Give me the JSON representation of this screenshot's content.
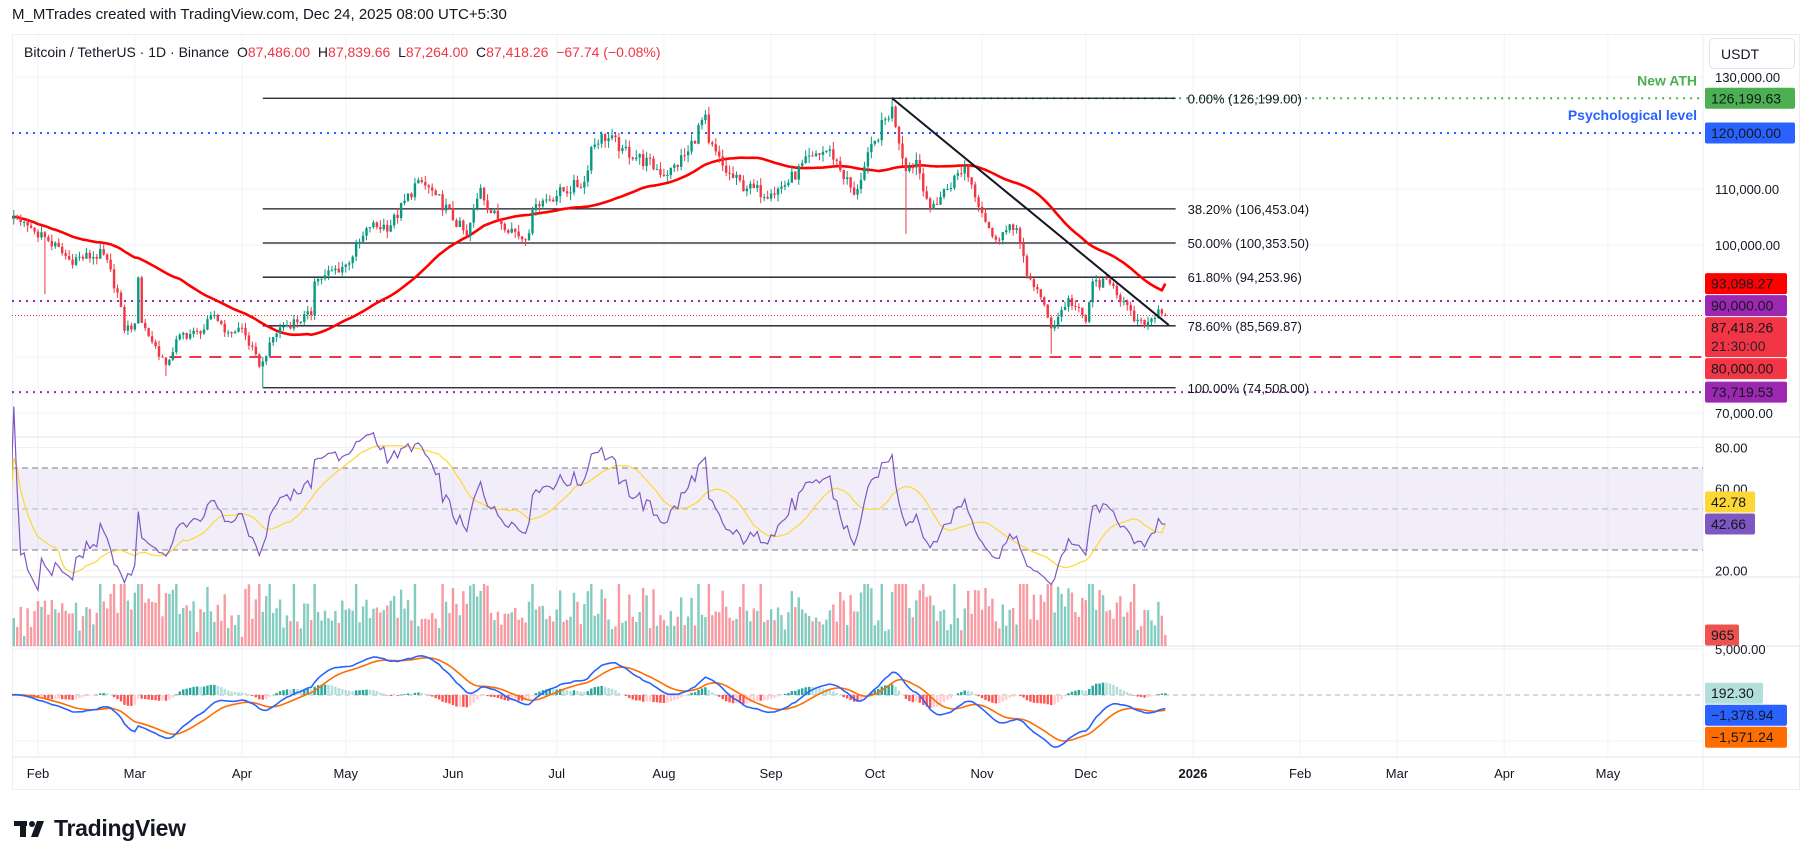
{
  "attribution": "M_MTrades created with TradingView.com, Dec 24, 2025 08:00 UTC+5:30",
  "legend": {
    "symbol": "Bitcoin / TetherUS · 1D · Binance",
    "o_label": "O",
    "open": "87,486.00",
    "h_label": "H",
    "high": "87,839.66",
    "l_label": "L",
    "low": "87,264.00",
    "c_label": "C",
    "close": "87,418.26",
    "change": "−67.74 (−0.08%)"
  },
  "currency_button": "USDT",
  "logo": "TradingView",
  "colors": {
    "up": "#089981",
    "down": "#F23645",
    "ma": "#FF0000",
    "rsi": "#7E57C2",
    "rsi_ma": "#FDD835",
    "macd": "#2962FF",
    "signal": "#FF6D00",
    "ath": "#4CAF50",
    "psych": "#2962FF",
    "support": "#9C27B0"
  },
  "chart_data": {
    "type": "candlestick",
    "interval": "1D",
    "price": {
      "y_range": [
        67000,
        132000
      ],
      "y_ticks": [
        {
          "value": 70000,
          "label": "70,000.00"
        },
        {
          "value": 100000,
          "label": "100,000.00"
        },
        {
          "value": 110000,
          "label": "110,000.00"
        },
        {
          "value": 130000,
          "label": "130,000.00"
        }
      ],
      "close_path": [
        [
          "2025-01-24",
          104800
        ],
        [
          "2025-01-31",
          102400
        ],
        [
          "2025-02-03",
          101400
        ],
        [
          "2025-02-10",
          97400
        ],
        [
          "2025-02-20",
          98300
        ],
        [
          "2025-02-24",
          91500
        ],
        [
          "2025-02-26",
          84700
        ],
        [
          "2025-03-01",
          86000
        ],
        [
          "2025-03-02",
          94200
        ],
        [
          "2025-03-03",
          86100
        ],
        [
          "2025-03-10",
          78600
        ],
        [
          "2025-03-14",
          84000
        ],
        [
          "2025-03-20",
          84200
        ],
        [
          "2025-03-24",
          87500
        ],
        [
          "2025-03-28",
          84400
        ],
        [
          "2025-04-01",
          85200
        ],
        [
          "2025-04-06",
          78300
        ],
        [
          "2025-04-07",
          79200
        ],
        [
          "2025-04-09",
          82600
        ],
        [
          "2025-04-12",
          85300
        ],
        [
          "2025-04-21",
          87500
        ],
        [
          "2025-04-22",
          93500
        ],
        [
          "2025-04-25",
          94600
        ],
        [
          "2025-05-01",
          96500
        ],
        [
          "2025-05-08",
          103200
        ],
        [
          "2025-05-14",
          103500
        ],
        [
          "2025-05-22",
          111600
        ],
        [
          "2025-05-27",
          108900
        ],
        [
          "2025-06-05",
          101600
        ],
        [
          "2025-06-09",
          110200
        ],
        [
          "2025-06-12",
          105700
        ],
        [
          "2025-06-22",
          100900
        ],
        [
          "2025-06-25",
          107300
        ],
        [
          "2025-07-03",
          109600
        ],
        [
          "2025-07-09",
          111300
        ],
        [
          "2025-07-11",
          117500
        ],
        [
          "2025-07-14",
          119800
        ],
        [
          "2025-07-20",
          117300
        ],
        [
          "2025-08-02",
          112500
        ],
        [
          "2025-08-08",
          116700
        ],
        [
          "2025-08-13",
          123300
        ],
        [
          "2025-08-14",
          118300
        ],
        [
          "2025-08-19",
          112900
        ],
        [
          "2025-08-25",
          110100
        ],
        [
          "2025-09-01",
          109200
        ],
        [
          "2025-09-05",
          110700
        ],
        [
          "2025-09-13",
          115900
        ],
        [
          "2025-09-18",
          117100
        ],
        [
          "2025-09-25",
          109000
        ],
        [
          "2025-10-01",
          118600
        ],
        [
          "2025-10-06",
          124700
        ],
        [
          "2025-10-10",
          113200
        ],
        [
          "2025-10-13",
          115200
        ],
        [
          "2025-10-17",
          106400
        ],
        [
          "2025-10-27",
          114100
        ],
        [
          "2025-11-04",
          101500
        ],
        [
          "2025-11-11",
          103000
        ],
        [
          "2025-11-14",
          94500
        ],
        [
          "2025-11-17",
          92100
        ],
        [
          "2025-11-21",
          85100
        ],
        [
          "2025-11-26",
          90500
        ],
        [
          "2025-12-01",
          86300
        ],
        [
          "2025-12-03",
          93500
        ],
        [
          "2025-12-09",
          92700
        ],
        [
          "2025-12-15",
          86400
        ],
        [
          "2025-12-18",
          85500
        ],
        [
          "2025-12-22",
          88500
        ],
        [
          "2025-12-24",
          87418.26
        ]
      ],
      "extreme_wicks": [
        {
          "date": "2025-02-03",
          "low": 91200
        },
        {
          "date": "2025-04-07",
          "low": 74508
        },
        {
          "date": "2025-10-06",
          "high": 126199.63
        },
        {
          "date": "2025-10-10",
          "low": 102000
        },
        {
          "date": "2025-11-21",
          "low": 80600
        },
        {
          "date": "2025-03-10",
          "low": 76600
        }
      ],
      "last_candle": {
        "date": "2025-12-24",
        "open": 87486.0,
        "high": 87839.66,
        "low": 87264.0,
        "close": 87418.26
      },
      "moving_average": {
        "last": 93098.27
      },
      "fib_retracement": {
        "from": "2025-04-07",
        "to": "2025-12-27",
        "levels": [
          {
            "price": 126199,
            "label": "0.00% (126,199.00)"
          },
          {
            "price": 106453.04,
            "label": "38.20% (106,453.04)"
          },
          {
            "price": 100353.5,
            "label": "50.00% (100,353.50)"
          },
          {
            "price": 94253.96,
            "label": "61.80% (94,253.96)"
          },
          {
            "price": 85569.87,
            "label": "78.60% (85,569.87)"
          },
          {
            "price": 74508,
            "label": "100.00% (74,508.00)"
          }
        ]
      },
      "trendline": [
        [
          "2025-10-06",
          126199
        ],
        [
          "2025-12-25",
          85700
        ]
      ],
      "horizontal_lines": [
        {
          "price": 126199.63,
          "style": "dotted",
          "color": "#4CAF50",
          "from": "2025-10-06"
        },
        {
          "price": 120000,
          "style": "dotted",
          "color": "#2962FF"
        },
        {
          "price": 90000,
          "style": "dotted",
          "color": "#9C27B0"
        },
        {
          "price": 87418.26,
          "style": "fine-dotted",
          "color": "#F23645"
        },
        {
          "price": 80000,
          "style": "dashed",
          "color": "#F23645",
          "from": "2025-03-11"
        },
        {
          "price": 73719.53,
          "style": "dotted",
          "color": "#9C27B0"
        }
      ],
      "notes": [
        {
          "text": "New ATH",
          "price": 126199.63,
          "color": "#4CAF50"
        },
        {
          "text": "Psychological level",
          "price": 120000,
          "color": "#2962FF"
        }
      ],
      "badges": [
        {
          "label": "126,199.63",
          "value": 126199.63,
          "bg": "#4CAF50",
          "fg": "#ffffff"
        },
        {
          "label": "120,000.00",
          "value": 120000,
          "bg": "#2962FF",
          "fg": "#ffffff"
        },
        {
          "label": "93,098.27",
          "value": 93098.27,
          "bg": "#FF0000",
          "fg": "#ffffff"
        },
        {
          "label": "90,000.00",
          "value": 90000,
          "bg": "#9C27B0",
          "fg": "#ffffff"
        },
        {
          "label": "87,418.26",
          "sub": "21:30:00",
          "value": 87418.26,
          "bg": "#F23645",
          "fg": "#ffffff"
        },
        {
          "label": "80,000.00",
          "value": 80000,
          "bg": "#F23645",
          "fg": "#ffffff"
        },
        {
          "label": "73,719.53",
          "value": 73719.53,
          "bg": "#9C27B0",
          "fg": "#ffffff"
        }
      ]
    },
    "rsi": {
      "length": 14,
      "upper_band": 70,
      "middle": 50,
      "lower_band": 30,
      "y_ticks": [
        {
          "value": 80,
          "label": "80.00"
        },
        {
          "value": 60,
          "label": "60.00"
        },
        {
          "value": 20,
          "label": "20.00"
        }
      ],
      "badges": [
        {
          "label": "42.78",
          "value": 42.78,
          "bg": "#FDD835",
          "fg": "#131722"
        },
        {
          "label": "42.66",
          "value": 42.66,
          "bg": "#7E57C2",
          "fg": "#ffffff"
        }
      ]
    },
    "volume": {
      "last": 965,
      "badges": [
        {
          "label": "965",
          "value": 965,
          "bg": "#EF5350",
          "fg": "#ffffff"
        }
      ]
    },
    "macd": {
      "fast": 12,
      "slow": 26,
      "signal": 9,
      "y_ticks": [
        {
          "value": 5000,
          "label": "5,000.00"
        }
      ],
      "badges": [
        {
          "label": "192.30",
          "value": 192.3,
          "bg": "#B2DFDB",
          "fg": "#131722"
        },
        {
          "label": "−1,378.94",
          "value": -1378.94,
          "bg": "#2962FF",
          "fg": "#ffffff"
        },
        {
          "label": "−1,571.24",
          "value": -1571.24,
          "bg": "#FF6D00",
          "fg": "#ffffff"
        }
      ]
    },
    "x_ticks": [
      {
        "date": "2025-02-01",
        "label": "Feb"
      },
      {
        "date": "2025-03-01",
        "label": "Mar"
      },
      {
        "date": "2025-04-01",
        "label": "Apr"
      },
      {
        "date": "2025-05-01",
        "label": "May"
      },
      {
        "date": "2025-06-01",
        "label": "Jun"
      },
      {
        "date": "2025-07-01",
        "label": "Jul"
      },
      {
        "date": "2025-08-01",
        "label": "Aug"
      },
      {
        "date": "2025-09-01",
        "label": "Sep"
      },
      {
        "date": "2025-10-01",
        "label": "Oct"
      },
      {
        "date": "2025-11-01",
        "label": "Nov"
      },
      {
        "date": "2025-12-01",
        "label": "Dec"
      },
      {
        "date": "2026-01-01",
        "label": "2026",
        "bold": true
      },
      {
        "date": "2026-02-01",
        "label": "Feb"
      },
      {
        "date": "2026-03-01",
        "label": "Mar"
      },
      {
        "date": "2026-04-01",
        "label": "Apr"
      },
      {
        "date": "2026-05-01",
        "label": "May"
      }
    ]
  }
}
